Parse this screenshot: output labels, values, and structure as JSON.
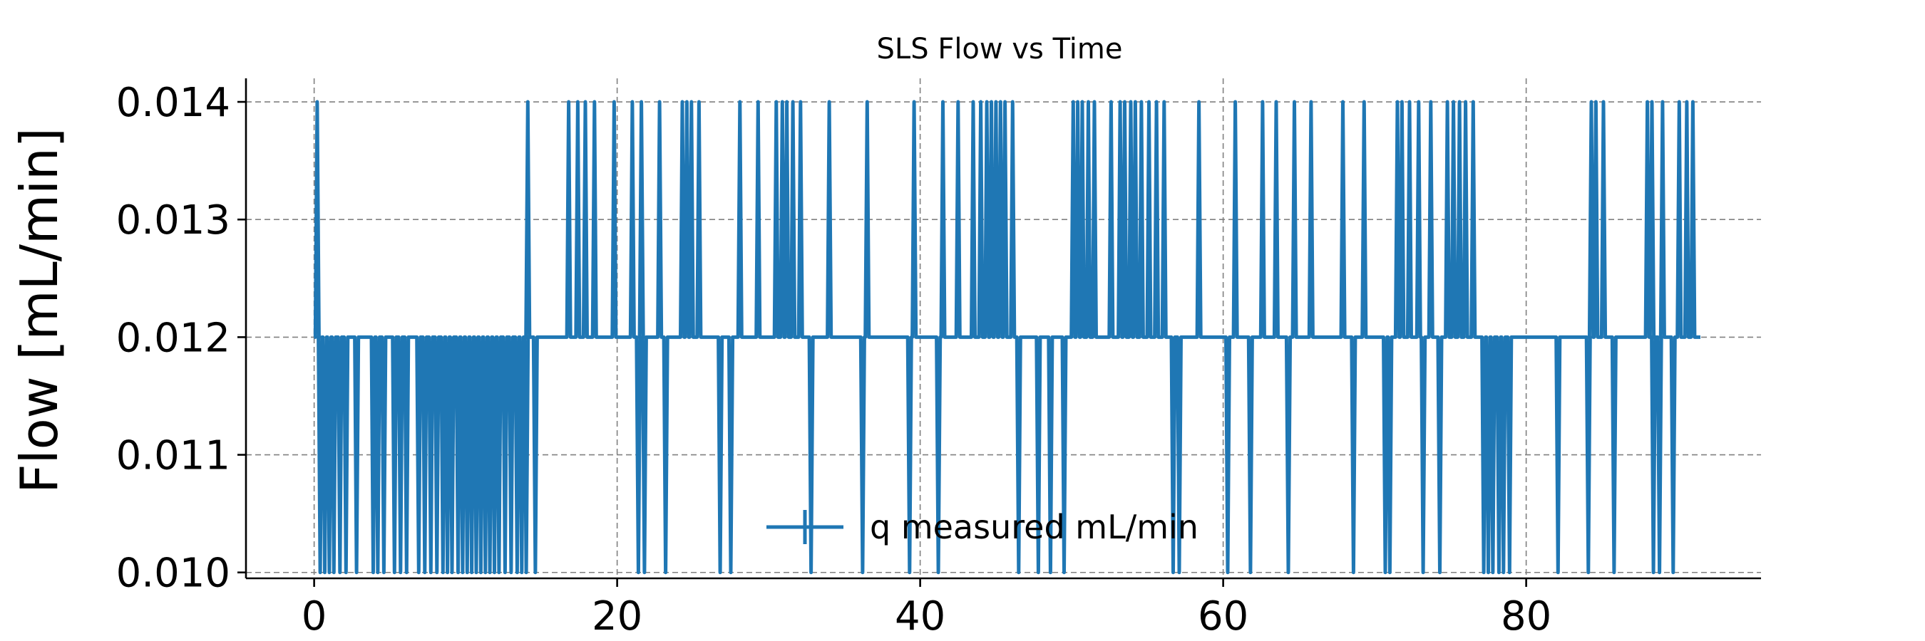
{
  "chart_data": {
    "type": "line",
    "title": "SLS Flow vs Time",
    "xlabel": "",
    "ylabel": "Flow [mL/min]",
    "xlim": [
      -4.5,
      95.5
    ],
    "ylim": [
      0.00995,
      0.0142
    ],
    "xticks": [
      0,
      20,
      40,
      60,
      80
    ],
    "xtick_labels": [
      "0",
      "20",
      "40",
      "60",
      "80"
    ],
    "yticks": [
      0.01,
      0.011,
      0.012,
      0.013,
      0.014
    ],
    "ytick_labels": [
      "0.010",
      "0.011",
      "0.012",
      "0.013",
      "0.014"
    ],
    "grid": true,
    "legend": "bottom-center",
    "colors": {
      "series": "#1f77b4"
    },
    "series": [
      {
        "name": "q measured mL/min",
        "low_x": [
          0.4,
          0.7,
          1.0,
          1.3,
          1.7,
          2.1,
          2.8,
          3.9,
          4.2,
          4.6,
          5.3,
          5.7,
          6.1,
          6.9,
          7.3,
          7.7,
          8.1,
          8.5,
          8.8,
          9.1,
          9.5,
          9.8,
          10.1,
          10.4,
          10.7,
          11.0,
          11.3,
          11.6,
          11.9,
          12.2,
          12.6,
          13.0,
          13.4,
          13.7,
          14.0,
          14.6,
          21.4,
          21.8,
          23.2,
          26.8,
          27.5,
          32.8,
          36.2,
          39.3,
          41.2,
          46.5,
          47.8,
          48.6,
          49.5,
          56.7,
          57.1,
          60.3,
          61.8,
          64.3,
          68.6,
          70.7,
          71.0,
          73.2,
          74.3,
          77.2,
          77.5,
          77.8,
          78.2,
          78.5,
          78.9,
          82.1,
          84.1,
          85.8,
          88.4,
          88.8,
          89.7
        ],
        "high_x": [
          0.2,
          14.1,
          16.8,
          17.4,
          17.9,
          18.5,
          19.8,
          21.0,
          21.6,
          22.8,
          24.3,
          24.6,
          24.9,
          25.4,
          28.1,
          29.3,
          30.5,
          30.9,
          31.2,
          31.6,
          32.1,
          34.0,
          36.5,
          39.6,
          41.5,
          42.5,
          43.5,
          44.0,
          44.4,
          44.7,
          45.0,
          45.3,
          45.6,
          46.1,
          50.1,
          50.4,
          50.7,
          51.1,
          51.5,
          52.6,
          53.2,
          53.5,
          53.9,
          54.2,
          54.6,
          55.1,
          55.6,
          56.1,
          58.4,
          60.8,
          62.6,
          63.5,
          64.7,
          65.8,
          67.9,
          69.3,
          71.5,
          71.8,
          72.3,
          72.9,
          73.7,
          74.8,
          75.2,
          75.6,
          76.0,
          76.5,
          84.3,
          84.6,
          85.1,
          88.0,
          88.3,
          89.0,
          90.1,
          90.6,
          91.0
        ],
        "values_note_x_range": [
          0,
          91.5
        ]
      }
    ]
  }
}
